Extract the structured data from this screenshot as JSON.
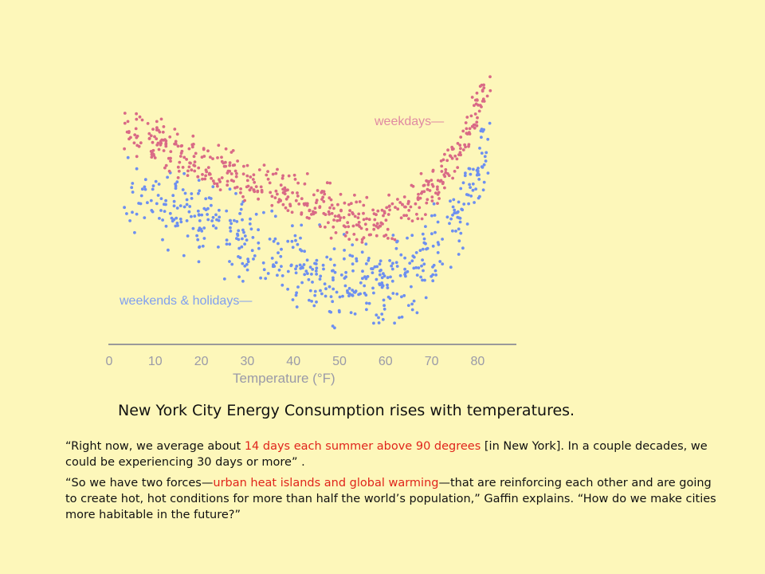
{
  "chart_data": {
    "type": "scatter",
    "xlabel": "Temperature (°F)",
    "xticks": [
      "0",
      "10",
      "20",
      "30",
      "40",
      "50",
      "60",
      "70",
      "80"
    ],
    "xlim": [
      0,
      88
    ],
    "series": [
      {
        "name": "weekdays—",
        "color": "#d96a86",
        "trend_points": [
          [
            3,
            66
          ],
          [
            10,
            62
          ],
          [
            20,
            55
          ],
          [
            30,
            50
          ],
          [
            40,
            45
          ],
          [
            50,
            39
          ],
          [
            55,
            37
          ],
          [
            60,
            38
          ],
          [
            65,
            41
          ],
          [
            70,
            47
          ],
          [
            75,
            57
          ],
          [
            80,
            72
          ],
          [
            83,
            82
          ]
        ]
      },
      {
        "name": "weekends & holidays—",
        "color": "#6d8ff0",
        "trend_points": [
          [
            3,
            48
          ],
          [
            10,
            44
          ],
          [
            20,
            38
          ],
          [
            30,
            31
          ],
          [
            40,
            25
          ],
          [
            50,
            20
          ],
          [
            55,
            18
          ],
          [
            60,
            19
          ],
          [
            65,
            22
          ],
          [
            70,
            28
          ],
          [
            75,
            38
          ],
          [
            80,
            52
          ],
          [
            83,
            60
          ]
        ]
      }
    ]
  },
  "colors": {
    "background": "#fdf7ba",
    "highlight": "#e0241b"
  },
  "caption": "New York City Energy Consumption rises with temperatures.",
  "quote1": {
    "a": "“Right now, we average about ",
    "b": "14 days each summer above 90 degrees",
    "c": " [in New York]. In a couple decades, we could be experiencing 30 days or more” ."
  },
  "quote2": {
    "a": "“So we have two forces—",
    "b": "urban heat islands and global warming",
    "c": "—that are reinforcing each other and are going to create hot, hot conditions for more than half the world’s population,” Gaffin explains.  “How do we make cities more habitable in the future?”"
  }
}
